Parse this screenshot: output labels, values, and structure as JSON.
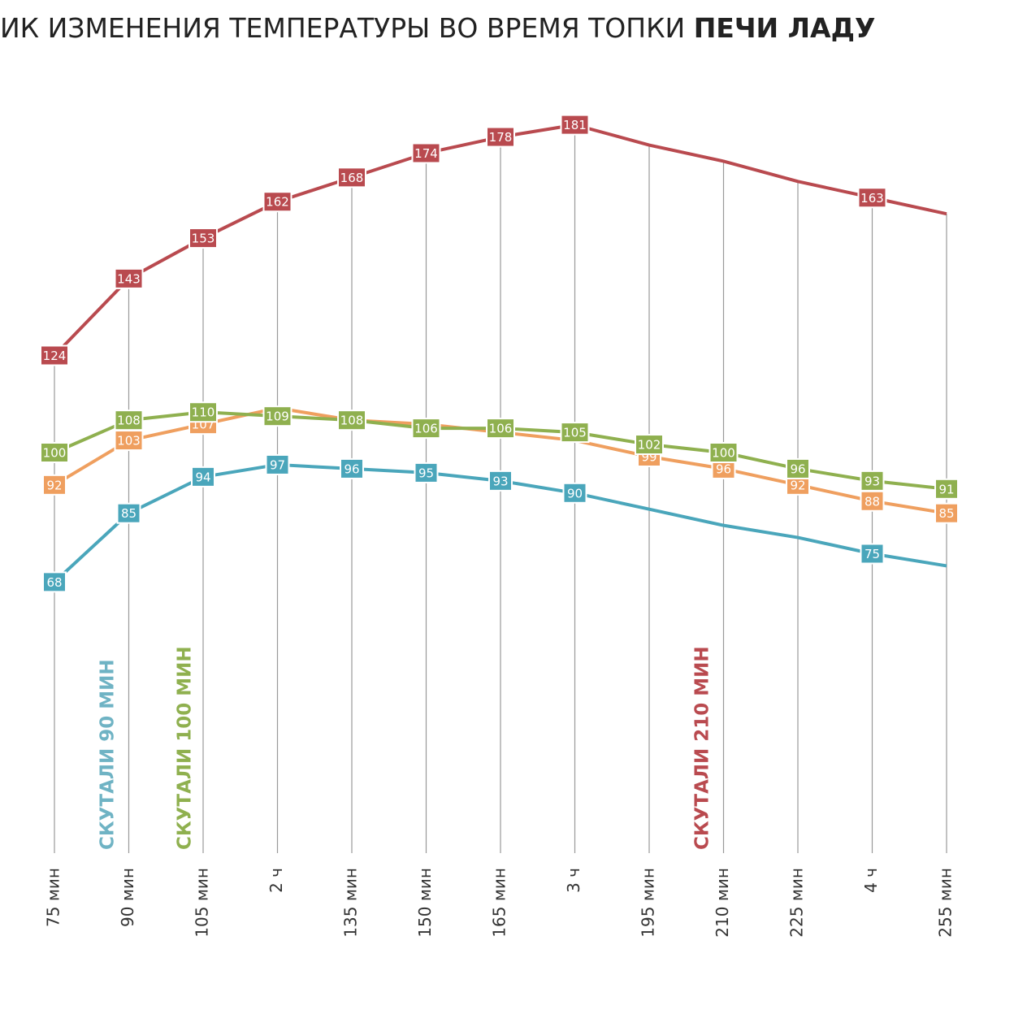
{
  "chart_data": {
    "type": "line",
    "title": "ИК ИЗМЕНЕНИЯ ТЕМПЕРАТУРЫ ВО ВРЕМЯ ТОПКИ ",
    "title_bold": "ПЕЧИ ЛАДУ",
    "categories": [
      "75 мин",
      "90 мин",
      "105 мин",
      "2 ч",
      "135 мин",
      "150 мин",
      "165 мин",
      "3 ч",
      "195 мин",
      "210 мин",
      "225 мин",
      "4 ч",
      "255 мин"
    ],
    "ylim": [
      0,
      200
    ],
    "series": [
      {
        "color": "#b94a4f",
        "values": [
          124,
          143,
          153,
          162,
          168,
          174,
          178,
          181,
          176,
          172,
          167,
          163,
          159
        ],
        "value_labels": [
          "124",
          "143",
          "153",
          "162",
          "168",
          "174",
          "178",
          "181",
          null,
          null,
          null,
          "163",
          null
        ]
      },
      {
        "color": "#ef9f5f",
        "values": [
          92,
          103,
          107,
          111,
          108,
          107,
          105,
          103,
          99,
          96,
          92,
          88,
          85
        ],
        "value_labels": [
          "92",
          "103",
          "107",
          null,
          null,
          null,
          null,
          null,
          "99",
          "96",
          "92",
          "88",
          "85"
        ]
      },
      {
        "color": "#8fb04f",
        "values": [
          100,
          108,
          110,
          109,
          108,
          106,
          106,
          105,
          102,
          100,
          96,
          93,
          91
        ],
        "value_labels": [
          "100",
          "108",
          "110",
          "109",
          "108",
          "106",
          "106",
          "105",
          "102",
          "100",
          "96",
          "93",
          "91"
        ]
      },
      {
        "color": "#4aa6bb",
        "values": [
          68,
          85,
          94,
          97,
          96,
          95,
          93,
          90,
          86,
          82,
          79,
          75,
          72
        ],
        "value_labels": [
          "68",
          "85",
          "94",
          "97",
          "96",
          "95",
          "93",
          "90",
          null,
          null,
          null,
          "75",
          null
        ]
      }
    ],
    "annotations": [
      {
        "text": "СКУТАЛИ 90 МИН",
        "color": "#6fb3c4"
      },
      {
        "text": "СКУТАЛИ 100 МИН",
        "color": "#8fb04f"
      },
      {
        "text": "СКУТАЛИ 210 МИН",
        "color": "#b94a4f"
      }
    ]
  }
}
